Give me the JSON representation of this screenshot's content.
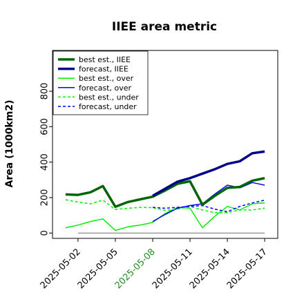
{
  "chart_data": {
    "type": "line",
    "title": "IIEE area metric",
    "xlabel": "",
    "ylabel": "Area (1000km2)",
    "ylim": [
      -30,
      1030
    ],
    "yticks": [
      0,
      200,
      400,
      600,
      800
    ],
    "x": [
      "2025-05-01",
      "2025-05-02",
      "2025-05-03",
      "2025-05-04",
      "2025-05-05",
      "2025-05-06",
      "2025-05-07",
      "2025-05-08",
      "2025-05-09",
      "2025-05-10",
      "2025-05-11",
      "2025-05-12",
      "2025-05-13",
      "2025-05-14",
      "2025-05-15",
      "2025-05-16",
      "2025-05-17"
    ],
    "xtick_labels": [
      {
        "label": "2025-05-02",
        "color": "#000000"
      },
      {
        "label": "2025-05-05",
        "color": "#000000"
      },
      {
        "label": "2025-05-08",
        "color": "#228b22"
      },
      {
        "label": "2025-05-11",
        "color": "#000000"
      },
      {
        "label": "2025-05-14",
        "color": "#000000"
      },
      {
        "label": "2025-05-17",
        "color": "#000000"
      }
    ],
    "xtick_dates": [
      "2025-05-02",
      "2025-05-05",
      "2025-05-08",
      "2025-05-11",
      "2025-05-14",
      "2025-05-17"
    ],
    "legend_position": "top-left",
    "baseline": {
      "value": 0,
      "from": "2025-05-02",
      "to": "2025-05-17",
      "color": "#808080"
    },
    "series": [
      {
        "name": "best est., IIEE",
        "color": "#006400",
        "width": 3.5,
        "dash": "solid",
        "x": [
          "2025-05-01",
          "2025-05-02",
          "2025-05-03",
          "2025-05-04",
          "2025-05-05",
          "2025-05-06",
          "2025-05-07",
          "2025-05-08",
          "2025-05-09",
          "2025-05-10",
          "2025-05-11",
          "2025-05-12",
          "2025-05-13",
          "2025-05-14",
          "2025-05-15",
          "2025-05-16",
          "2025-05-17"
        ],
        "values": [
          218,
          215,
          230,
          265,
          148,
          175,
          190,
          205,
          240,
          278,
          292,
          160,
          210,
          255,
          260,
          295,
          310
        ]
      },
      {
        "name": "forecast, IIEE",
        "color": "#00008b",
        "width": 3.5,
        "dash": "solid",
        "x": [
          "2025-05-08",
          "2025-05-09",
          "2025-05-10",
          "2025-05-11",
          "2025-05-12",
          "2025-05-13",
          "2025-05-14",
          "2025-05-15",
          "2025-05-16",
          "2025-05-17"
        ],
        "values": [
          210,
          250,
          290,
          310,
          335,
          360,
          390,
          405,
          450,
          460
        ]
      },
      {
        "name": "best est., over",
        "color": "#00ee00",
        "width": 1.5,
        "dash": "solid",
        "x": [
          "2025-05-01",
          "2025-05-02",
          "2025-05-03",
          "2025-05-04",
          "2025-05-05",
          "2025-05-06",
          "2025-05-07",
          "2025-05-08",
          "2025-05-09",
          "2025-05-10",
          "2025-05-11",
          "2025-05-12",
          "2025-05-13",
          "2025-05-14",
          "2025-05-15",
          "2025-05-16",
          "2025-05-17"
        ],
        "values": [
          30,
          45,
          65,
          80,
          15,
          35,
          45,
          60,
          110,
          145,
          140,
          30,
          95,
          150,
          130,
          165,
          170
        ]
      },
      {
        "name": "forecast, over",
        "color": "#0000ff",
        "width": 1.5,
        "dash": "solid",
        "x": [
          "2025-05-08",
          "2025-05-09",
          "2025-05-10",
          "2025-05-11",
          "2025-05-12",
          "2025-05-13",
          "2025-05-14",
          "2025-05-15",
          "2025-05-16",
          "2025-05-17"
        ],
        "values": [
          65,
          105,
          140,
          155,
          165,
          220,
          270,
          255,
          285,
          270
        ]
      },
      {
        "name": "best est., under",
        "color": "#00ee00",
        "width": 1.5,
        "dash": "dashed",
        "x": [
          "2025-05-01",
          "2025-05-02",
          "2025-05-03",
          "2025-05-04",
          "2025-05-05",
          "2025-05-06",
          "2025-05-07",
          "2025-05-08",
          "2025-05-09",
          "2025-05-10",
          "2025-05-11",
          "2025-05-12",
          "2025-05-13",
          "2025-05-14",
          "2025-05-15",
          "2025-05-16",
          "2025-05-17"
        ],
        "values": [
          188,
          175,
          165,
          185,
          133,
          140,
          145,
          143,
          128,
          135,
          150,
          130,
          115,
          115,
          130,
          130,
          140
        ]
      },
      {
        "name": "forecast, under",
        "color": "#0000ff",
        "width": 1.5,
        "dash": "dashed",
        "x": [
          "2025-05-08",
          "2025-05-09",
          "2025-05-10",
          "2025-05-11",
          "2025-05-12",
          "2025-05-13",
          "2025-05-14",
          "2025-05-15",
          "2025-05-16",
          "2025-05-17"
        ],
        "values": [
          145,
          140,
          145,
          150,
          155,
          135,
          120,
          150,
          170,
          185
        ]
      }
    ]
  }
}
